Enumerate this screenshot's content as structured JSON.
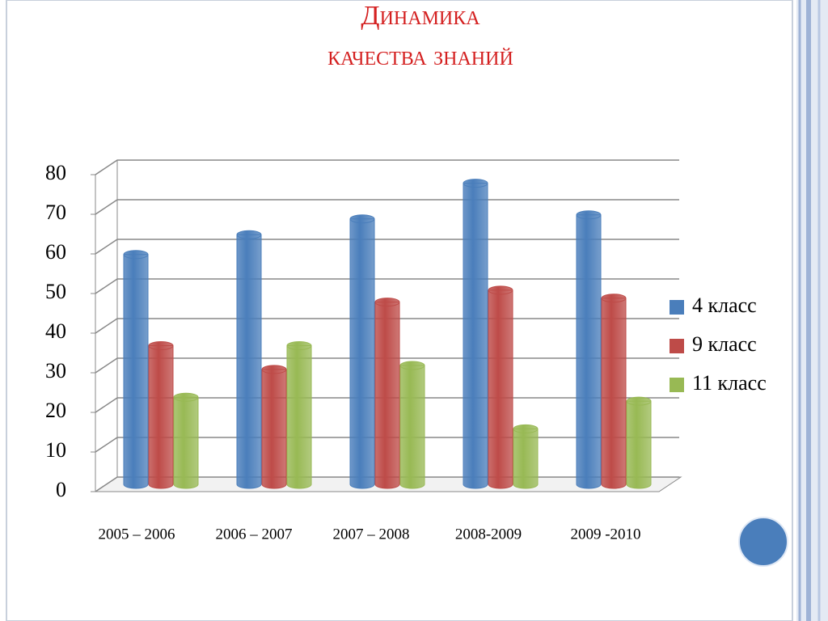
{
  "chart_data": {
    "type": "bar",
    "title": [
      "Динамика",
      "качества знаний"
    ],
    "categories": [
      "2005 – 2006",
      "2006 – 2007",
      "2007 – 2008",
      "2008-2009",
      "2009 -2010"
    ],
    "series": [
      {
        "name": "4 класс",
        "color": "#4a7ebb",
        "values": [
          58,
          63,
          67,
          76,
          68
        ]
      },
      {
        "name": "9 класс",
        "color": "#be4b48",
        "values": [
          35,
          29,
          46,
          49,
          47
        ]
      },
      {
        "name": "11 класс",
        "color": "#98b954",
        "values": [
          22,
          35,
          30,
          14,
          21
        ]
      }
    ],
    "ylim": [
      0,
      80
    ],
    "yticks": [
      0,
      10,
      20,
      30,
      40,
      50,
      60,
      70,
      80
    ],
    "grid": true,
    "legend": "right"
  }
}
